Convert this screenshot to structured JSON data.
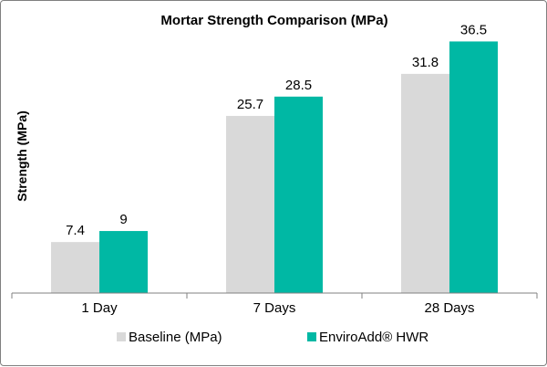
{
  "chart_data": {
    "type": "bar",
    "title": "Mortar Strength Comparison (MPa)",
    "xlabel": "",
    "ylabel": "Strength (MPa)",
    "categories": [
      "1 Day",
      "7 Days",
      "28 Days"
    ],
    "series": [
      {
        "name": "Baseline (MPa)",
        "values": [
          7.4,
          25.7,
          31.8
        ],
        "color": "#D9D9D9"
      },
      {
        "name": "EnviroAdd® HWR",
        "values": [
          9,
          28.5,
          36.5
        ],
        "color": "#00B8A4"
      }
    ],
    "ylim": [
      0,
      40
    ],
    "grid": false,
    "legend": "bottom",
    "data_labels": true
  }
}
